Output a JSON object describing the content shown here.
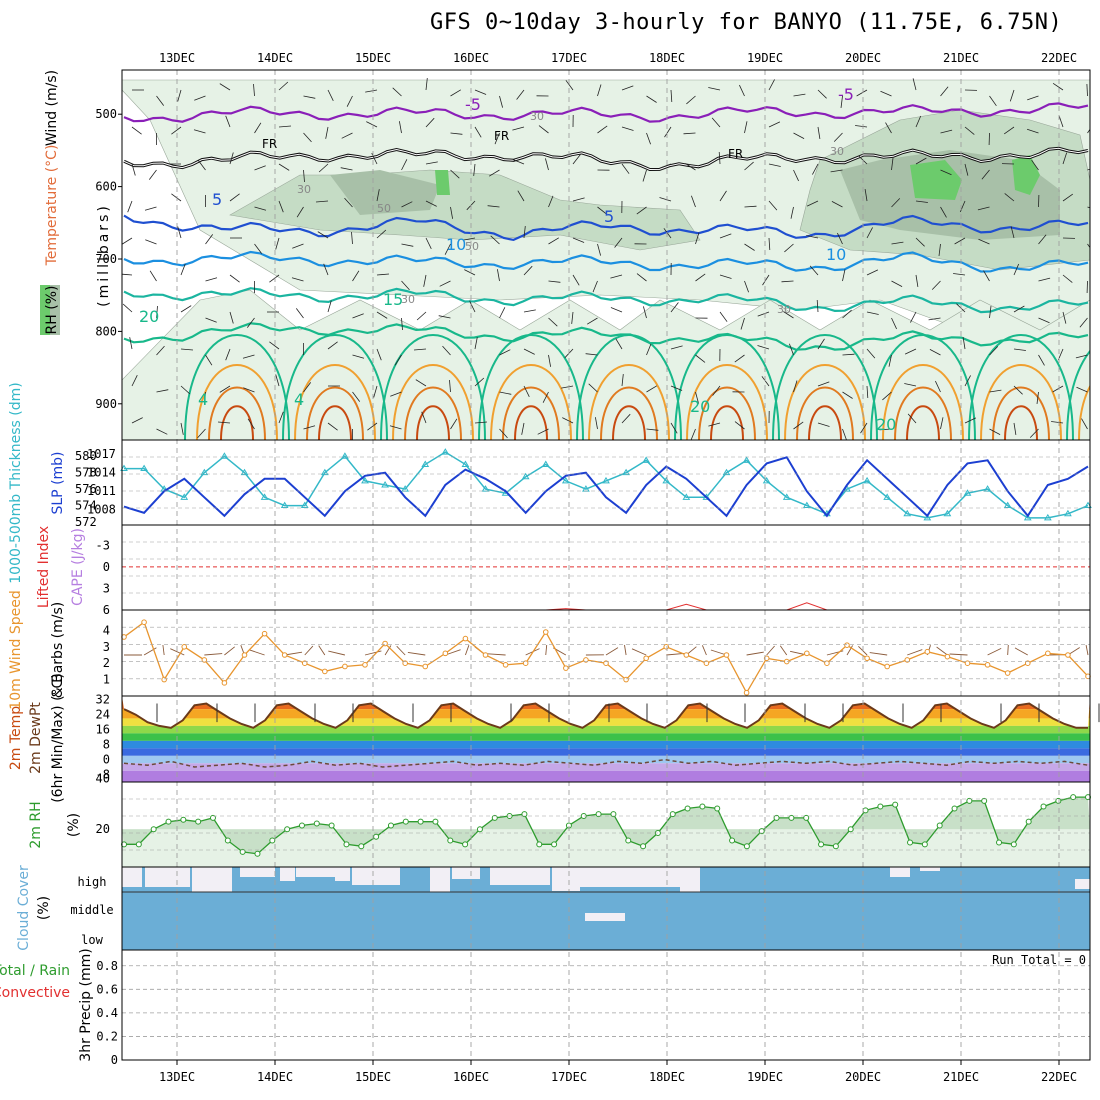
{
  "title": "GFS 0~10day 3-hourly for BANYO (11.75E, 6.75N)",
  "dates": [
    "13DEC",
    "14DEC",
    "15DEC",
    "16DEC",
    "17DEC",
    "18DEC",
    "19DEC",
    "20DEC",
    "21DEC",
    "22DEC"
  ],
  "colors": {
    "axis": "#000000",
    "grid": "#a0a0a0",
    "rh_light": "#e6f2e6",
    "rh_mid": "#c5dcc5",
    "rh_dark": "#a8c0a8",
    "rh_green": "#6ccb6c",
    "cloud": "#6baed6",
    "slp": "#1c3fd1",
    "thick": "#33b8c8",
    "wind": "#e8952e",
    "rh2m": "#2e9c2e",
    "lifted": "#e23030",
    "cape": "#b67fe0"
  },
  "chart_data": [
    {
      "panel": "upper-air",
      "type": "contour",
      "ylabel": "(millibars)",
      "left_labels": [
        "Wind (m/s)",
        "Temperature (°C)",
        "RH (%)"
      ],
      "yticks": [
        500,
        600,
        700,
        800,
        900
      ],
      "ylim": [
        1000,
        450
      ],
      "isotherm_labels": [
        "-5",
        "-5",
        "FR",
        "FR",
        "FR",
        "5",
        "5",
        "10",
        "10",
        "15",
        "20",
        "20",
        "20",
        "4",
        "4"
      ],
      "rh_labels": [
        "30",
        "30",
        "50",
        "50",
        "30",
        "30",
        "30"
      ],
      "isotherms": [
        {
          "name": "-5",
          "p": [
            504,
            500,
            498,
            500,
            499,
            502,
            500,
            496,
            498,
            493
          ]
        },
        {
          "name": "FR",
          "p": [
            565,
            565,
            555,
            558,
            555,
            567,
            568,
            558,
            560,
            555
          ]
        },
        {
          "name": "5",
          "p": [
            640,
            660,
            660,
            650,
            665,
            655,
            660,
            665,
            650,
            655
          ]
        },
        {
          "name": "10",
          "p": [
            700,
            700,
            700,
            705,
            705,
            705,
            708,
            710,
            700,
            710
          ]
        },
        {
          "name": "15",
          "p": [
            745,
            750,
            750,
            750,
            755,
            755,
            755,
            765,
            760,
            765
          ]
        },
        {
          "name": "20",
          "p": [
            810,
            800,
            795,
            800,
            805,
            805,
            810,
            820,
            810,
            810
          ]
        }
      ]
    },
    {
      "panel": "thickness-slp",
      "type": "line",
      "left_labels": [
        "1000-500mb Thickness (dm)",
        "SLP (mb)"
      ],
      "thickness_ticks": [
        "580",
        "578",
        "576",
        "574",
        "572"
      ],
      "slp_ticks": [
        "1017",
        "1014",
        "1011",
        "1008"
      ],
      "series": [
        {
          "name": "Thickness",
          "values": [
            578.5,
            578.5,
            576,
            575,
            578,
            580,
            578,
            575,
            574,
            574,
            578,
            580,
            577,
            576.5,
            576,
            579,
            580.5,
            579,
            576,
            575.5,
            577.5,
            579,
            577,
            576,
            577,
            578,
            579.5,
            577,
            575,
            575,
            578,
            579.5,
            577,
            575,
            574,
            573,
            576,
            577,
            575,
            573,
            572.5,
            573,
            575.5,
            576,
            574,
            572.5,
            572.5,
            573,
            574
          ]
        },
        {
          "name": "SLP",
          "values": [
            1008.5,
            1007.5,
            1011,
            1013,
            1010,
            1007,
            1010.5,
            1013,
            1013,
            1010,
            1007,
            1011,
            1013.5,
            1014,
            1010,
            1007,
            1012,
            1014.5,
            1013,
            1011,
            1007.5,
            1011,
            1013.5,
            1014,
            1010,
            1007.5,
            1012,
            1015,
            1013,
            1010,
            1007,
            1012,
            1015.5,
            1016.5,
            1011,
            1007,
            1012,
            1016,
            1013,
            1010,
            1007,
            1012,
            1015.5,
            1016,
            1011,
            1007,
            1012,
            1013,
            1015
          ]
        }
      ]
    },
    {
      "panel": "stability",
      "type": "line",
      "left_labels": [
        "Lifted Index",
        "CAPE (J/kg)"
      ],
      "yticks": [
        "-3",
        "0",
        "3",
        "6"
      ],
      "ylim": [
        -5,
        6
      ],
      "series": [
        {
          "name": "Lifted Index",
          "values": [
            6,
            6,
            6,
            6,
            6,
            6,
            6,
            6,
            6,
            6,
            6,
            6,
            6,
            6,
            6,
            6,
            6,
            6,
            6,
            6,
            6,
            6,
            5.8,
            6,
            6,
            6,
            6,
            6,
            5.2,
            6,
            6,
            6,
            6,
            6,
            5.0,
            6,
            6,
            6,
            6,
            6,
            6,
            6,
            6,
            6,
            6,
            6,
            6,
            6,
            6
          ]
        }
      ]
    },
    {
      "panel": "wind10m",
      "type": "line",
      "left_labels": [
        "10m Wind Speed",
        "& Barbs (m/s)"
      ],
      "yticks": [
        "1",
        "2",
        "3",
        "4"
      ],
      "ylim": [
        0,
        5
      ],
      "series": [
        {
          "name": "10m Wind",
          "values": [
            3.6,
            4.5,
            1.0,
            3.0,
            2.2,
            0.8,
            2.5,
            3.8,
            2.5,
            2.0,
            1.5,
            1.8,
            1.9,
            3.2,
            2.0,
            1.8,
            2.6,
            3.5,
            2.5,
            1.9,
            2.0,
            3.9,
            1.7,
            2.2,
            2.0,
            1.0,
            2.3,
            3.0,
            2.5,
            2.0,
            2.5,
            0.2,
            2.3,
            2.1,
            2.6,
            2.0,
            3.1,
            2.3,
            1.8,
            2.2,
            2.7,
            2.4,
            2.0,
            1.9,
            1.4,
            2.0,
            2.6,
            2.5,
            1.2
          ]
        }
      ]
    },
    {
      "panel": "temperature",
      "type": "area",
      "left_labels": [
        "2m Temp",
        "2m DewPt",
        "(6hr Min/Max) (°C)"
      ],
      "yticks": [
        "32",
        "24",
        "16",
        "8",
        "0",
        "-8"
      ],
      "bottom_tick": "40",
      "ylim": [
        -12,
        34
      ],
      "series": [
        {
          "name": "2m Temp",
          "values": [
            27,
            24,
            20,
            18,
            17,
            21,
            29,
            30,
            26,
            22,
            19,
            17,
            21,
            29,
            30,
            26,
            22,
            19,
            17,
            21,
            29,
            30,
            26,
            22,
            19,
            17,
            21,
            29,
            30,
            26,
            22,
            19,
            17,
            21,
            29,
            30,
            26,
            22,
            19,
            17,
            21,
            29,
            30,
            26,
            22,
            19,
            17,
            21,
            29,
            30,
            26,
            22,
            19,
            17,
            21,
            29,
            30,
            26,
            22,
            19,
            17,
            21,
            29,
            30,
            26,
            22,
            19,
            17,
            21,
            29,
            30,
            26,
            22,
            19,
            17,
            21,
            29,
            30,
            26,
            22,
            19,
            17,
            17
          ]
        },
        {
          "name": "2m DewPt",
          "values": [
            -2,
            -3,
            -1,
            -4,
            -3,
            -2,
            -4,
            -3,
            -1,
            -3,
            -2,
            -4,
            -3,
            -2,
            -1,
            -3,
            -2,
            -3,
            -1,
            -2,
            -3,
            -1,
            -2,
            0,
            -2,
            -1,
            -3,
            -2,
            -1,
            -2,
            -1,
            -3,
            -2,
            -1,
            -2,
            -3,
            -1,
            -2,
            -1,
            -2,
            -1,
            -3
          ]
        }
      ]
    },
    {
      "panel": "rh2m",
      "type": "area",
      "left_labels": [
        "2m RH",
        "(%)"
      ],
      "yticks": [
        "20"
      ],
      "ylim": [
        0,
        45
      ],
      "series": [
        {
          "name": "2m RH",
          "values": [
            12,
            12,
            20,
            24,
            25,
            24,
            26,
            14,
            8,
            7,
            14,
            20,
            22,
            23,
            22,
            12,
            11,
            16,
            22,
            24,
            24,
            24,
            14,
            12,
            20,
            26,
            27,
            28,
            12,
            12,
            22,
            27,
            28,
            28,
            14,
            11,
            18,
            28,
            31,
            32,
            31,
            14,
            11,
            19,
            26,
            26,
            26,
            12,
            11,
            20,
            30,
            32,
            33,
            13,
            12,
            22,
            31,
            35,
            35,
            13,
            12,
            24,
            32,
            35,
            37,
            37
          ]
        }
      ]
    },
    {
      "panel": "cloud",
      "type": "bar",
      "left_labels": [
        "Cloud Cover",
        "(%)"
      ],
      "levels": [
        "high",
        "middle",
        "low"
      ]
    },
    {
      "panel": "precip",
      "type": "bar",
      "left_labels": [
        "Total / Rain",
        "Convective",
        "3hr Precip (mm)"
      ],
      "yticks": [
        "0.8",
        "0.6",
        "0.4",
        "0.2",
        "0"
      ],
      "ylim": [
        0,
        0.9
      ],
      "run_total": "Run Total = 0",
      "values": []
    }
  ]
}
